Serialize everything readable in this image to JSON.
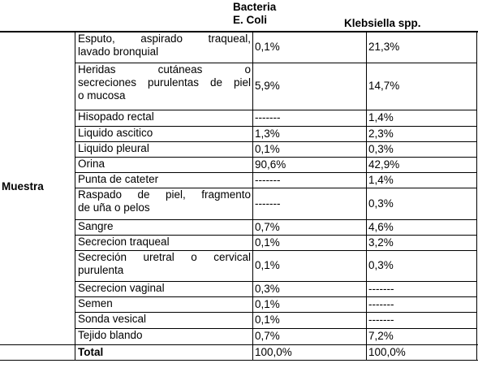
{
  "header": {
    "bacteria_line1": "Bacteria",
    "bacteria_line2": "E. Coli",
    "klebsiella": "Klebsiella spp."
  },
  "group_label": "Muestra",
  "rows": [
    {
      "sample": [
        "Esputo, aspirado traqueal,",
        "lavado bronquial"
      ],
      "ecoli": "0,1%",
      "kleb": "21,3%"
    },
    {
      "sample": [
        "Heridas cutáneas o",
        "secreciones purulentas de piel",
        "o mucosa"
      ],
      "ecoli": "5,9%",
      "kleb": "14,7%"
    },
    {
      "sample": [
        "Hisopado rectal"
      ],
      "ecoli": "-------",
      "kleb": "1,4%"
    },
    {
      "sample": [
        "Liquido ascitico"
      ],
      "ecoli": "1,3%",
      "kleb": "2,3%"
    },
    {
      "sample": [
        "Liquido pleural"
      ],
      "ecoli": "0,1%",
      "kleb": "0,3%"
    },
    {
      "sample": [
        "Orina"
      ],
      "ecoli": "90,6%",
      "kleb": "42,9%"
    },
    {
      "sample": [
        "Punta de cateter"
      ],
      "ecoli": "-------",
      "kleb": "1,4%"
    },
    {
      "sample": [
        "Raspado de piel, fragmento",
        "de uña o pelos"
      ],
      "ecoli": "-------",
      "kleb": "0,3%"
    },
    {
      "sample": [
        "Sangre"
      ],
      "ecoli": "0,7%",
      "kleb": "4,6%"
    },
    {
      "sample": [
        "Secrecion traqueal"
      ],
      "ecoli": "0,1%",
      "kleb": "3,2%"
    },
    {
      "sample": [
        "Secreción uretral o cervical",
        "purulenta"
      ],
      "ecoli": "0,1%",
      "kleb": "0,3%"
    },
    {
      "sample": [
        "Secrecion vaginal"
      ],
      "ecoli": "0,3%",
      "kleb": "-------"
    },
    {
      "sample": [
        "Semen"
      ],
      "ecoli": "0,1%",
      "kleb": "-------"
    },
    {
      "sample": [
        "Sonda vesical"
      ],
      "ecoli": "0,1%",
      "kleb": "-------"
    },
    {
      "sample": [
        "Tejido blando"
      ],
      "ecoli": "0,7%",
      "kleb": "7,2%"
    }
  ],
  "total": {
    "label": "Total",
    "ecoli": "100,0%",
    "kleb": "100,0%"
  }
}
